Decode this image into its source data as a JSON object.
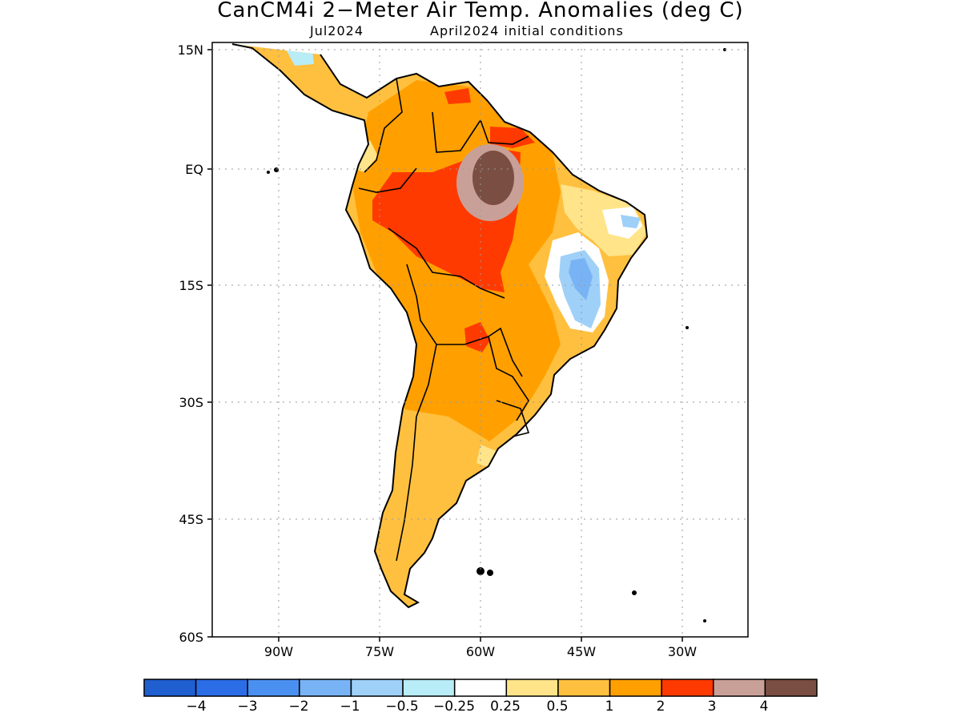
{
  "header": {
    "title": "CanCM4i 2−Meter Air Temp. Anomalies (deg C)",
    "month": "Jul2024",
    "initial_conditions": "April2024 initial conditions"
  },
  "map": {
    "region": "South America",
    "lon_range": [
      -102,
      -22
    ],
    "lat_range": [
      -60,
      15
    ],
    "lat_ticks": [
      "15N",
      "EQ",
      "15S",
      "30S",
      "45S",
      "60S"
    ],
    "lon_ticks": [
      "90W",
      "75W",
      "60W",
      "45W",
      "30W"
    ],
    "grid": "dotted"
  },
  "legend": {
    "labels": [
      "−4",
      "−3",
      "−2",
      "−1",
      "−0.5",
      "−0.25",
      "0.25",
      "0.5",
      "1",
      "2",
      "3",
      "4"
    ],
    "colors": [
      "#1f5fd0",
      "#2b6de6",
      "#4a90f0",
      "#78b4f5",
      "#9fd0f8",
      "#b8ecf7",
      "#ffffff",
      "#ffe48a",
      "#ffc03f",
      "#ffa000",
      "#ff3a00",
      "#c8a098",
      "#7a4e42"
    ]
  }
}
